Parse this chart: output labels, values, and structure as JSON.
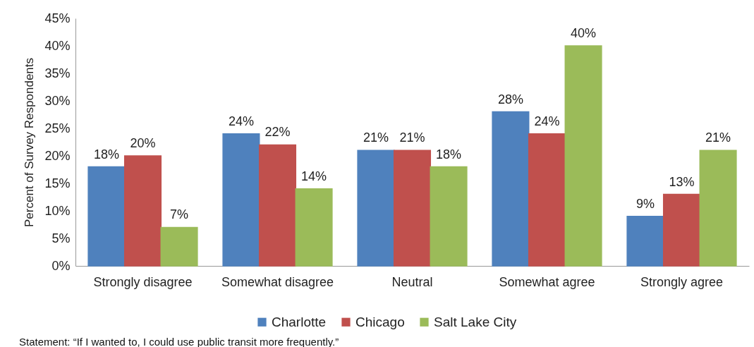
{
  "chart_data": {
    "type": "bar",
    "ylabel": "Percent of Survey Respondents",
    "categories": [
      "Strongly disagree",
      "Somewhat disagree",
      "Neutral",
      "Somewhat agree",
      "Strongly agree"
    ],
    "series": [
      {
        "name": "Charlotte",
        "color": "#4f81bd",
        "values": [
          18,
          24,
          21,
          28,
          9
        ],
        "value_labels": [
          "18%",
          "24%",
          "21%",
          "28%",
          "9%"
        ]
      },
      {
        "name": "Chicago",
        "color": "#c0504d",
        "values": [
          20,
          22,
          21,
          24,
          13
        ],
        "value_labels": [
          "20%",
          "22%",
          "21%",
          "24%",
          "13%"
        ]
      },
      {
        "name": "Salt Lake City",
        "color": "#9bbb59",
        "values": [
          7,
          14,
          18,
          40,
          21
        ],
        "value_labels": [
          "7%",
          "14%",
          "18%",
          "40%",
          "21%"
        ]
      }
    ],
    "ylim": [
      0,
      45
    ],
    "yticks": [
      {
        "value": 0,
        "label": "0%"
      },
      {
        "value": 5,
        "label": "5%"
      },
      {
        "value": 10,
        "label": "10%"
      },
      {
        "value": 15,
        "label": "15%"
      },
      {
        "value": 20,
        "label": "20%"
      },
      {
        "value": 25,
        "label": "25%"
      },
      {
        "value": 30,
        "label": "30%"
      },
      {
        "value": 35,
        "label": "35%"
      },
      {
        "value": 40,
        "label": "40%"
      },
      {
        "value": 45,
        "label": "45%"
      }
    ],
    "grid": false,
    "legend": "bottom",
    "annotations": [
      "Statement: “If I wanted to, I could use public transit more frequently.”"
    ]
  }
}
